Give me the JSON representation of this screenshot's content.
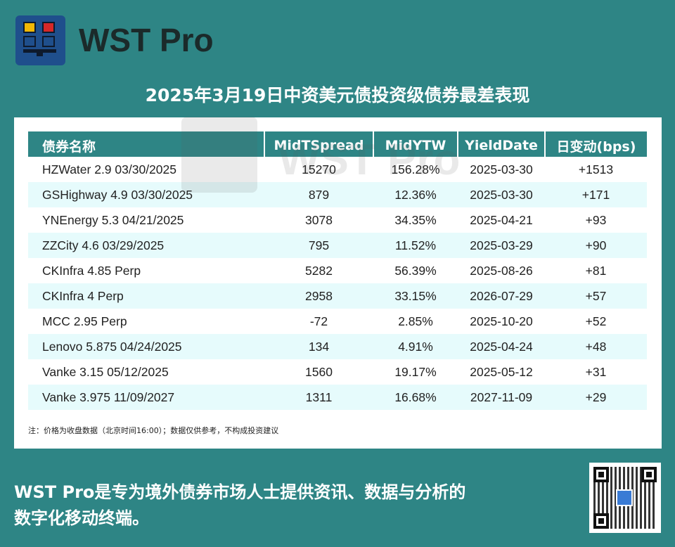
{
  "brand": {
    "logo_text": "WST Pro",
    "accent": "#2e8585",
    "logo_bg": "#1f4f8c"
  },
  "title": "2025年3月19日中资美元债投资级债券最差表现",
  "table": {
    "headers": [
      "债券名称",
      "MidTSpread",
      "MidYTW",
      "YieldDate",
      "日变动(bps)"
    ],
    "rows": [
      [
        "HZWater 2.9 03/30/2025",
        "15270",
        "156.28%",
        "2025-03-30",
        "+1513"
      ],
      [
        "GSHighway 4.9 03/30/2025",
        "879",
        "12.36%",
        "2025-03-30",
        "+171"
      ],
      [
        "YNEnergy 5.3 04/21/2025",
        "3078",
        "34.35%",
        "2025-04-21",
        "+93"
      ],
      [
        "ZZCity 4.6 03/29/2025",
        "795",
        "11.52%",
        "2025-03-29",
        "+90"
      ],
      [
        "CKInfra 4.85 Perp",
        "5282",
        "56.39%",
        "2025-08-26",
        "+81"
      ],
      [
        "CKInfra 4 Perp",
        "2958",
        "33.15%",
        "2026-07-29",
        "+57"
      ],
      [
        "MCC 2.95 Perp",
        "-72",
        "2.85%",
        "2025-10-20",
        "+52"
      ],
      [
        "Lenovo 5.875 04/24/2025",
        "134",
        "4.91%",
        "2025-04-24",
        "+48"
      ],
      [
        "Vanke 3.15 05/12/2025",
        "1560",
        "19.17%",
        "2025-05-12",
        "+31"
      ],
      [
        "Vanke 3.975 11/09/2027",
        "1311",
        "16.68%",
        "2027-11-09",
        "+29"
      ]
    ]
  },
  "note": "注：价格为收盘数据（北京时间16:00）；数据仅供参考，不构成投资建议",
  "watermark": "WST Pro",
  "footer": {
    "line1": "WST Pro是专为境外债券市场人士提供资讯、数据与分析的",
    "line2": "数字化移动终端。"
  },
  "icons": {
    "qr": "qr-code-icon",
    "logo": "wst-logo-icon"
  }
}
